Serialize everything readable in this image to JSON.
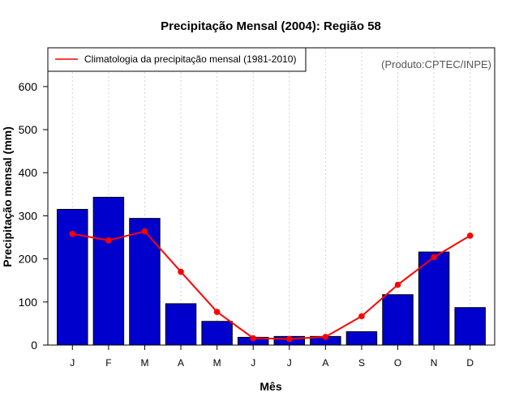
{
  "chart_data": {
    "type": "bar",
    "title": "Precipitação Mensal (2004): Região 58",
    "xlabel": "Mês",
    "ylabel": "Precipitação mensal (mm)",
    "categories": [
      "J",
      "F",
      "M",
      "A",
      "M",
      "J",
      "J",
      "A",
      "S",
      "O",
      "N",
      "D"
    ],
    "ylim": [
      0,
      690
    ],
    "yticks": [
      0,
      100,
      200,
      300,
      400,
      500,
      600
    ],
    "series": [
      {
        "name": "Precipitação mensal (2004)",
        "type": "bar",
        "color": "#0000CD",
        "values": [
          315,
          343,
          294,
          96,
          55,
          18,
          20,
          20,
          31,
          117,
          216,
          87
        ]
      },
      {
        "name": "Climatologia da precipitação mensal (1981-2010)",
        "type": "line",
        "color": "#FF0000",
        "values": [
          258,
          243,
          264,
          170,
          77,
          16,
          14,
          19,
          67,
          140,
          204,
          254
        ]
      }
    ],
    "legend": {
      "position": "top-left",
      "label": "Climatologia da precipitação mensal (1981-2010)"
    },
    "annotation": "(Produto:CPTEC/INPE)",
    "grid": {
      "vertical": true,
      "style": "dotted"
    }
  }
}
